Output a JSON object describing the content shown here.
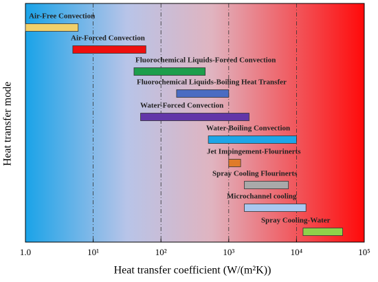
{
  "chart_data": {
    "type": "range-bar",
    "categories": [
      "Air-Free Convection",
      "Air-Forced Convection",
      "Fluorochemical Liquids-Forced Convection",
      "Fluorochemical Liquids-Boiling Heat Transfer",
      "Water-Forced Convection",
      "Water-Boiling Convection",
      "Jet Impingement-Flourinerts",
      "Spray Cooling Flourinerts",
      "Microchannel cooling",
      "Spray Cooling-Water"
    ],
    "start": [
      1,
      5,
      40,
      170,
      50,
      500,
      1000,
      1700,
      1700,
      12500
    ],
    "end": [
      6,
      60,
      450,
      1000,
      2000,
      10000,
      1500,
      7600,
      13800,
      48000
    ],
    "colors": [
      "#f2d06b",
      "#ee0f0f",
      "#1d9e4c",
      "#4a6cc2",
      "#6236a8",
      "#1ea6e8",
      "#e07b28",
      "#a9a9a9",
      "#a9c8f0",
      "#8fd24a"
    ],
    "xlabel": "Heat transfer coefficient (W/(m²K))",
    "ylabel": "Heat transfer mode",
    "xlim": [
      1,
      100000
    ],
    "log_x": true,
    "xticks": [
      {
        "value": 1,
        "label": "1.0"
      },
      {
        "value": 10,
        "label": "10¹"
      },
      {
        "value": 100,
        "label": "10²"
      },
      {
        "value": 1000,
        "label": "10³"
      },
      {
        "value": 10000,
        "label": "10⁴"
      },
      {
        "value": 100000,
        "label": "10⁵"
      }
    ],
    "grid": true
  }
}
